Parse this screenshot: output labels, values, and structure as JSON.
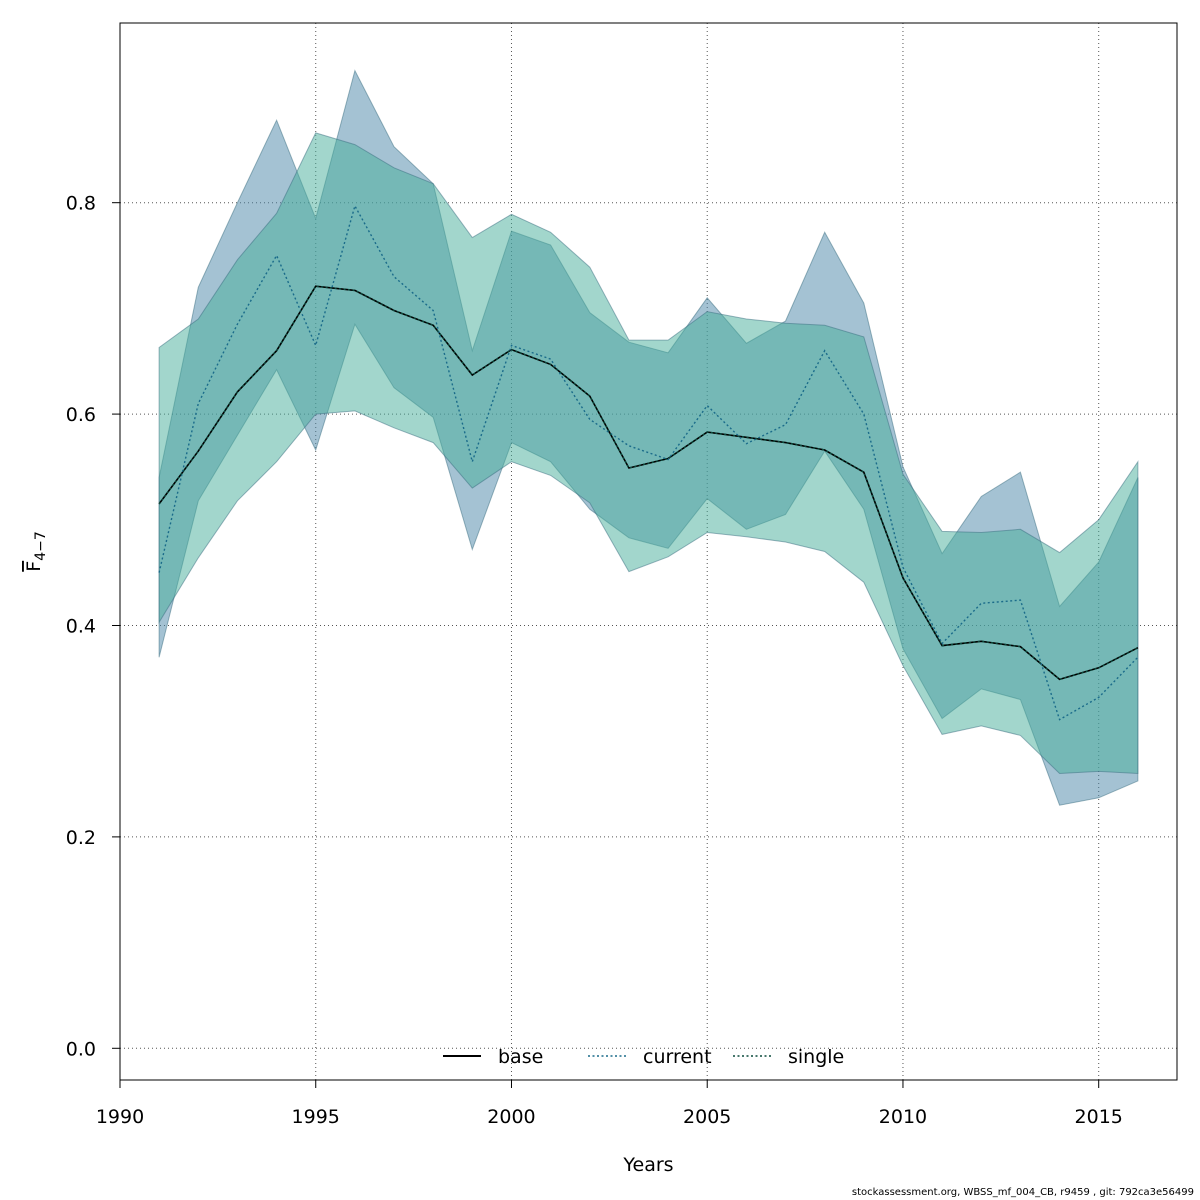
{
  "chart_data": {
    "type": "area",
    "xlabel": "Years",
    "ylabel_main": "F",
    "ylabel_sub": "4−7",
    "xlim": [
      1990,
      2017
    ],
    "ylim": [
      -0.03,
      0.97
    ],
    "xticks": [
      1990,
      1995,
      2000,
      2005,
      2010,
      2015
    ],
    "yticks": [
      0.0,
      0.2,
      0.4,
      0.6,
      0.8
    ],
    "ytick_labels": [
      "0.0",
      "0.2",
      "0.4",
      "0.6",
      "0.8"
    ],
    "grid": true,
    "legend_position": "bottom-center",
    "x": [
      1991,
      1992,
      1993,
      1994,
      1995,
      1996,
      1997,
      1998,
      1999,
      2000,
      2001,
      2002,
      2003,
      2004,
      2005,
      2006,
      2007,
      2008,
      2009,
      2010,
      2011,
      2012,
      2013,
      2014,
      2015,
      2016
    ],
    "bands": [
      {
        "color": "#4a86a8",
        "opacity": 0.5,
        "upper": [
          0.54,
          0.72,
          0.8,
          0.878,
          0.785,
          0.925,
          0.853,
          0.818,
          0.66,
          0.773,
          0.76,
          0.696,
          0.668,
          0.658,
          0.71,
          0.667,
          0.688,
          0.772,
          0.705,
          0.55,
          0.468,
          0.522,
          0.545,
          0.418,
          0.46,
          0.54
        ],
        "lower": [
          0.37,
          0.518,
          0.58,
          0.642,
          0.566,
          0.685,
          0.625,
          0.597,
          0.472,
          0.573,
          0.555,
          0.51,
          0.483,
          0.473,
          0.52,
          0.491,
          0.505,
          0.565,
          0.51,
          0.378,
          0.312,
          0.34,
          0.33,
          0.23,
          0.237,
          0.253
        ]
      },
      {
        "color": "#46ad9a",
        "opacity": 0.5,
        "upper": [
          0.663,
          0.69,
          0.746,
          0.79,
          0.866,
          0.855,
          0.833,
          0.818,
          0.767,
          0.789,
          0.772,
          0.739,
          0.67,
          0.67,
          0.697,
          0.69,
          0.686,
          0.684,
          0.673,
          0.543,
          0.489,
          0.488,
          0.491,
          0.469,
          0.5,
          0.555
        ],
        "lower": [
          0.403,
          0.464,
          0.518,
          0.555,
          0.6,
          0.603,
          0.587,
          0.573,
          0.53,
          0.555,
          0.542,
          0.516,
          0.451,
          0.465,
          0.488,
          0.484,
          0.479,
          0.47,
          0.441,
          0.362,
          0.297,
          0.305,
          0.296,
          0.26,
          0.262,
          0.26
        ]
      }
    ],
    "series": [
      {
        "name": "base",
        "style": "solid",
        "color": "#000000",
        "values": [
          0.515,
          0.565,
          0.621,
          0.66,
          0.721,
          0.717,
          0.698,
          0.684,
          0.637,
          0.661,
          0.647,
          0.617,
          0.549,
          0.558,
          0.583,
          0.578,
          0.573,
          0.566,
          0.545,
          0.445,
          0.381,
          0.385,
          0.38,
          0.349,
          0.36,
          0.379
        ]
      },
      {
        "name": "current",
        "style": "dotted",
        "color": "#1a6b8a",
        "values": [
          0.45,
          0.61,
          0.685,
          0.75,
          0.665,
          0.797,
          0.73,
          0.698,
          0.555,
          0.665,
          0.652,
          0.595,
          0.57,
          0.557,
          0.608,
          0.572,
          0.59,
          0.66,
          0.6,
          0.455,
          0.383,
          0.421,
          0.424,
          0.311,
          0.332,
          0.37
        ]
      },
      {
        "name": "single",
        "style": "dotted",
        "color": "#0a4a3c",
        "values": [
          0.515,
          0.565,
          0.621,
          0.66,
          0.721,
          0.717,
          0.698,
          0.684,
          0.637,
          0.661,
          0.647,
          0.617,
          0.549,
          0.558,
          0.583,
          0.578,
          0.573,
          0.566,
          0.545,
          0.445,
          0.381,
          0.385,
          0.38,
          0.349,
          0.36,
          0.379
        ]
      }
    ]
  },
  "footer": "stockassessment.org, WBSS_mf_004_CB, r9459 , git: 792ca3e56499"
}
